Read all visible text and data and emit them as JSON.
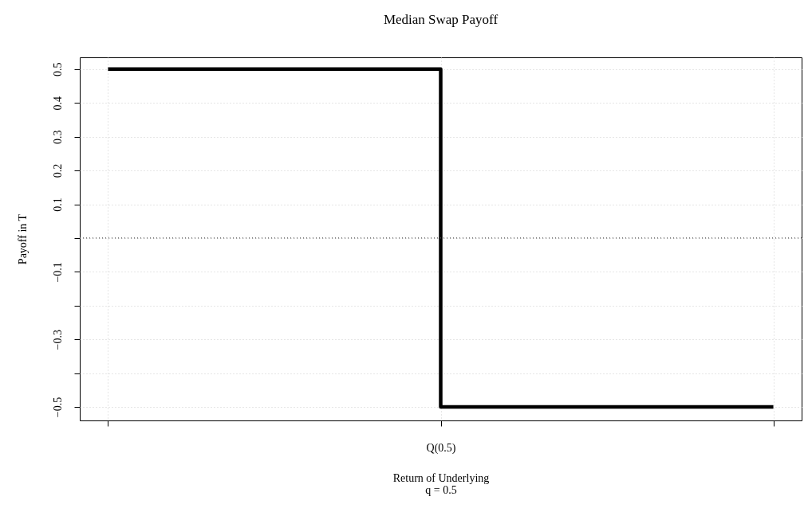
{
  "chart_data": {
    "type": "step",
    "title": "Median Swap Payoff",
    "xlabel": "Return of Underlying",
    "ylabel": "Payoff in T",
    "annotations": [
      "q = 0.5"
    ],
    "categories": [
      null,
      "Q(0.5)",
      null
    ],
    "series": [
      {
        "color": "#000000",
        "values": [
          0.5,
          -0.5,
          -0.5
        ]
      }
    ],
    "ylim": [
      -0.54,
      0.535
    ],
    "yticks": [
      -0.5,
      {
        "value": -0.4,
        "label": null
      },
      -0.3,
      {
        "value": -0.2,
        "label": null
      },
      -0.1,
      {
        "value": 0,
        "label": null
      },
      0.1,
      0.2,
      0.3,
      0.4,
      0.5
    ],
    "ref_lines": [
      {
        "axis": "y",
        "value": 0,
        "color": "#555555",
        "line_style": "dotted"
      }
    ],
    "grid": true,
    "marker": "none",
    "line_style": "solid"
  }
}
